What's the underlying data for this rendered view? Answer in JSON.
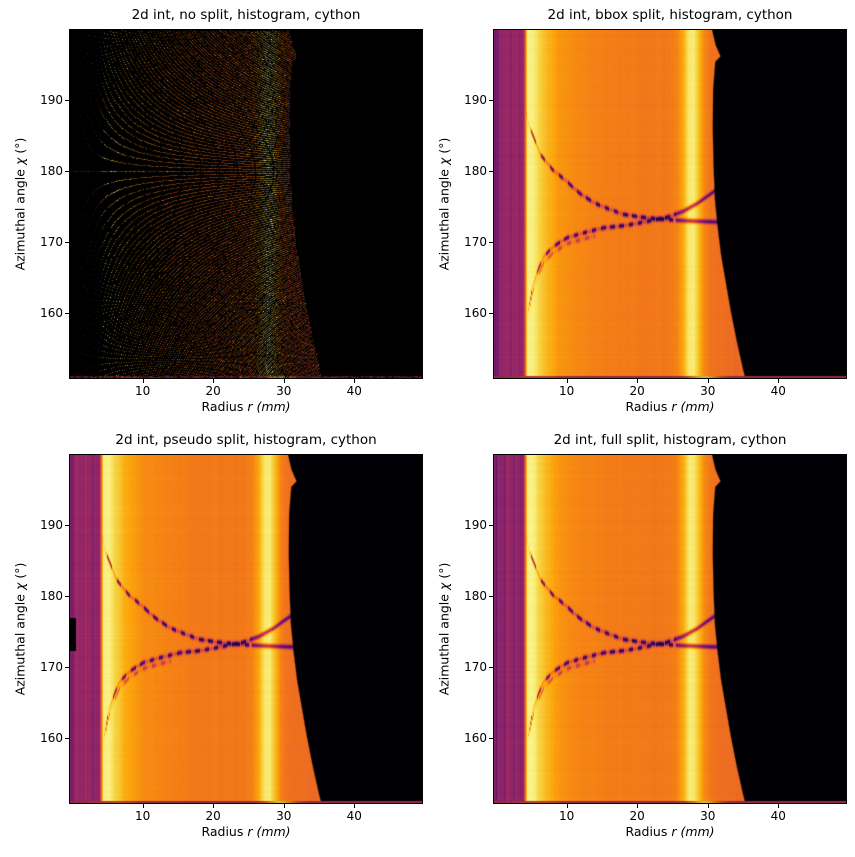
{
  "figure": {
    "background": "#ffffff"
  },
  "subplots": [
    {
      "key": "no-split",
      "title": "2d int, no split, histogram, cython",
      "render": "scatter",
      "notch": false
    },
    {
      "key": "bbox-split",
      "title": "2d int, bbox split, histogram, cython",
      "render": "heatmap",
      "notch": false
    },
    {
      "key": "pseudo-split",
      "title": "2d int, pseudo split, histogram, cython",
      "render": "heatmap",
      "notch": true
    },
    {
      "key": "full-split",
      "title": "2d int, full split, histogram, cython",
      "render": "heatmap",
      "notch": false
    }
  ],
  "axes": {
    "xlabel": "Radius r (mm)",
    "xlabel_segments": [
      {
        "t": "Radius ",
        "i": 0
      },
      {
        "t": "r",
        "i": 1
      },
      {
        "t": " ",
        "i": 0
      },
      {
        "t": "(mm)",
        "i": 1
      }
    ],
    "ylabel": "Azimuthal angle χ (°)",
    "ylabel_segments": [
      {
        "t": "Azimuthal angle ",
        "i": 0
      },
      {
        "t": "χ",
        "i": 1
      },
      {
        "t": " (°)",
        "i": 0
      }
    ],
    "xticks": [
      10,
      20,
      30,
      40
    ],
    "yticks": [
      160,
      170,
      180,
      190
    ],
    "xlim": [
      -0.3,
      49.6
    ],
    "ylim": [
      150.8,
      199.9
    ]
  },
  "chart_data": {
    "type": "heatmap",
    "colormap": "inferno",
    "colormap_stops": [
      [
        0.0,
        [
          0,
          0,
          4
        ]
      ],
      [
        0.1,
        [
          22,
          11,
          57
        ]
      ],
      [
        0.2,
        [
          66,
          10,
          104
        ]
      ],
      [
        0.3,
        [
          106,
          23,
          110
        ]
      ],
      [
        0.4,
        [
          147,
          38,
          103
        ]
      ],
      [
        0.5,
        [
          188,
          55,
          84
        ]
      ],
      [
        0.6,
        [
          221,
          81,
          58
        ]
      ],
      [
        0.7,
        [
          243,
          120,
          25
        ]
      ],
      [
        0.8,
        [
          252,
          165,
          10
        ]
      ],
      [
        0.9,
        [
          246,
          215,
          70
        ]
      ],
      [
        1.0,
        [
          252,
          255,
          164
        ]
      ]
    ],
    "xlabel": "Radius r (mm)",
    "ylabel": "Azimuthal angle χ (°)",
    "xlim": [
      -0.3,
      49.6
    ],
    "ylim": [
      150.8,
      199.9
    ],
    "xticks": [
      10,
      20,
      30,
      40
    ],
    "yticks": [
      160,
      170,
      180,
      190
    ],
    "bright_rings_mm": [
      5.0,
      27.7
    ],
    "low_intensity_band": {
      "r_end": 3.95,
      "value": 0.4
    },
    "radial_profile": [
      [
        -0.3,
        0.4
      ],
      [
        3.8,
        0.4
      ],
      [
        4.1,
        0.6
      ],
      [
        4.45,
        0.97
      ],
      [
        5.3,
        0.96
      ],
      [
        6.2,
        0.89
      ],
      [
        7.2,
        0.83
      ],
      [
        8.6,
        0.78
      ],
      [
        10,
        0.75
      ],
      [
        12,
        0.73
      ],
      [
        15,
        0.715
      ],
      [
        18,
        0.705
      ],
      [
        21,
        0.7
      ],
      [
        24,
        0.7
      ],
      [
        25.6,
        0.72
      ],
      [
        26.6,
        0.82
      ],
      [
        27.3,
        0.94
      ],
      [
        28.0,
        0.95
      ],
      [
        28.8,
        0.84
      ],
      [
        29.6,
        0.73
      ],
      [
        30.4,
        0.69
      ],
      [
        32,
        0.675
      ],
      [
        35.5,
        0.665
      ]
    ],
    "data_boundary_chi_r": [
      [
        150.8,
        35.4
      ],
      [
        152,
        35.1
      ],
      [
        156,
        34.2
      ],
      [
        160,
        33.4
      ],
      [
        164,
        32.7
      ],
      [
        168,
        32.0
      ],
      [
        172,
        31.5
      ],
      [
        176,
        31.1
      ],
      [
        181,
        30.9
      ],
      [
        186,
        30.8
      ],
      [
        191.5,
        30.85
      ],
      [
        195.4,
        31.15
      ],
      [
        196.2,
        31.9
      ],
      [
        197.8,
        31.2
      ],
      [
        199.9,
        30.7
      ]
    ],
    "absorption_arcs": {
      "arc_upper": [
        [
          4.2,
          188.6
        ],
        [
          4.7,
          186.3
        ],
        [
          5.4,
          184.6
        ],
        [
          6.3,
          182.3
        ],
        [
          8.0,
          180.2
        ],
        [
          9.7,
          178.8
        ],
        [
          11.8,
          176.9
        ],
        [
          13.9,
          175.5
        ],
        [
          16.1,
          174.6
        ],
        [
          18.0,
          173.9
        ],
        [
          20.5,
          173.5
        ],
        [
          23.5,
          173.2
        ],
        [
          26.5,
          173.0
        ],
        [
          29.0,
          172.9
        ],
        [
          31.6,
          172.8
        ]
      ],
      "arc_lower": [
        [
          4.4,
          159.5
        ],
        [
          5.2,
          163.8
        ],
        [
          6.0,
          166.2
        ],
        [
          6.8,
          168.0
        ],
        [
          8.2,
          169.4
        ],
        [
          10.1,
          170.6
        ],
        [
          12.5,
          171.3
        ],
        [
          15.3,
          172.0
        ],
        [
          18.2,
          172.3
        ],
        [
          21.0,
          172.8
        ],
        [
          24.3,
          173.5
        ],
        [
          26.5,
          174.3
        ],
        [
          28.5,
          175.4
        ],
        [
          30.3,
          176.7
        ],
        [
          31.6,
          177.6
        ]
      ],
      "echo_shift_deg": -0.85,
      "echo_max_r": 14,
      "dash_period_mm": 1.3
    },
    "pseudo_notch": {
      "r": [
        -0.3,
        0.55
      ],
      "chi": [
        172.2,
        176.9
      ]
    },
    "bottom_edge_row": {
      "base": 0.48,
      "peak_r": 29.5,
      "peak_amp": 0.45,
      "sigma": 2.2
    },
    "scatter": {
      "pixel_pitch_mm": 0.15,
      "detector_x_mm": [
        -35.8,
        -0.2
      ],
      "detector_y_mm": [
        -18,
        12.5
      ]
    }
  }
}
